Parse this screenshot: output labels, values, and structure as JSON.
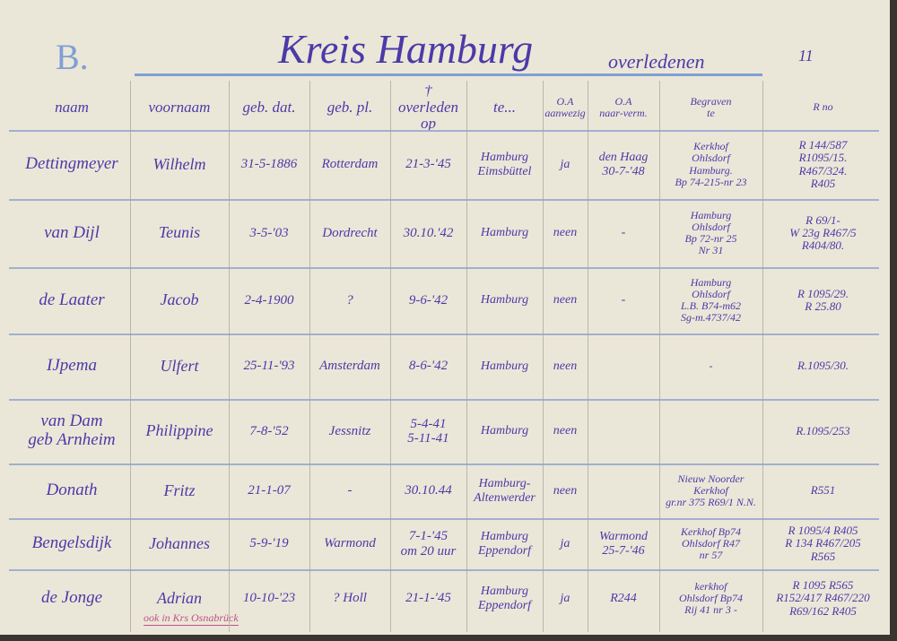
{
  "header": {
    "mark": "B.",
    "title": "Kreis Hamburg",
    "subtitle": "overledenen",
    "page": "11"
  },
  "table": {
    "columns": [
      "naam",
      "voornaam",
      "geb. dat.",
      "geb. pl.",
      "†\noverleden op",
      "te...",
      "O.A\naanwezig",
      "O.A\nnaar-verm.",
      "Begraven\nte",
      "R no"
    ],
    "rows": [
      [
        "Dettingmeyer",
        "Wilhelm",
        "31-5-1886",
        "Rotterdam",
        "21-3-'45",
        "Hamburg\nEimsbüttel",
        "ja",
        "den Haag\n30-7-'48",
        "Kerkhof\nOhlsdorf\nHamburg.\nBp 74-215-nr 23",
        "R 144/587\nR1095/15.\nR467/324.\nR405"
      ],
      [
        "van Dijl",
        "Teunis",
        "3-5-'03",
        "Dordrecht",
        "30.10.'42",
        "Hamburg",
        "neen",
        "-",
        "Hamburg\nOhlsdorf\nBp 72-nr 25\nNr 31",
        "R 69/1-\nW 23g R467/5\nR404/80."
      ],
      [
        "de Laater",
        "Jacob",
        "2-4-1900",
        "?",
        "9-6-'42",
        "Hamburg",
        "neen",
        "-",
        "Hamburg\nOhlsdorf\nL.B. B74-m62\nSg-m.4737/42",
        "R 1095/29.\nR 25.80"
      ],
      [
        "IJpema",
        "Ulfert",
        "25-11-'93",
        "Amsterdam",
        "8-6-'42",
        "Hamburg",
        "neen",
        "",
        "-",
        "R.1095/30."
      ],
      [
        "van Dam\ngeb Arnheim",
        "Philippine",
        "7-8-'52",
        "Jessnitz",
        "5-4-41\n5-11-41",
        "Hamburg",
        "neen",
        "",
        "",
        "R.1095/253"
      ],
      [
        "Donath",
        "Fritz",
        "21-1-07",
        "-",
        "30.10.44",
        "Hamburg-\nAltenwerder",
        "neen",
        "",
        "Nieuw Noorder\nKerkhof\ngr.nr 375 R69/1 N.N.",
        "R551"
      ],
      [
        "Bengelsdijk",
        "Johannes",
        "5-9-'19",
        "Warmond",
        "7-1-'45\nom 20 uur",
        "Hamburg\nEppendorf",
        "ja",
        "Warmond\n25-7-'46",
        "Kerkhof Bp74\nOhlsdorf R47\nnr 57",
        "R 1095/4 R405\nR 134 R467/205\nR565"
      ],
      [
        "de Jonge",
        "Adrian",
        "10-10-'23",
        "? Holl",
        "21-1-'45",
        "Hamburg\nEppendorf",
        "ja",
        "R244",
        "kerkhof\nOhlsdorf Bp74\nRij 41 nr 3 -",
        "R 1095 R565\nR152/417 R467/220\nR69/162 R405"
      ]
    ]
  },
  "note": "ook in Krs Osnabrück"
}
